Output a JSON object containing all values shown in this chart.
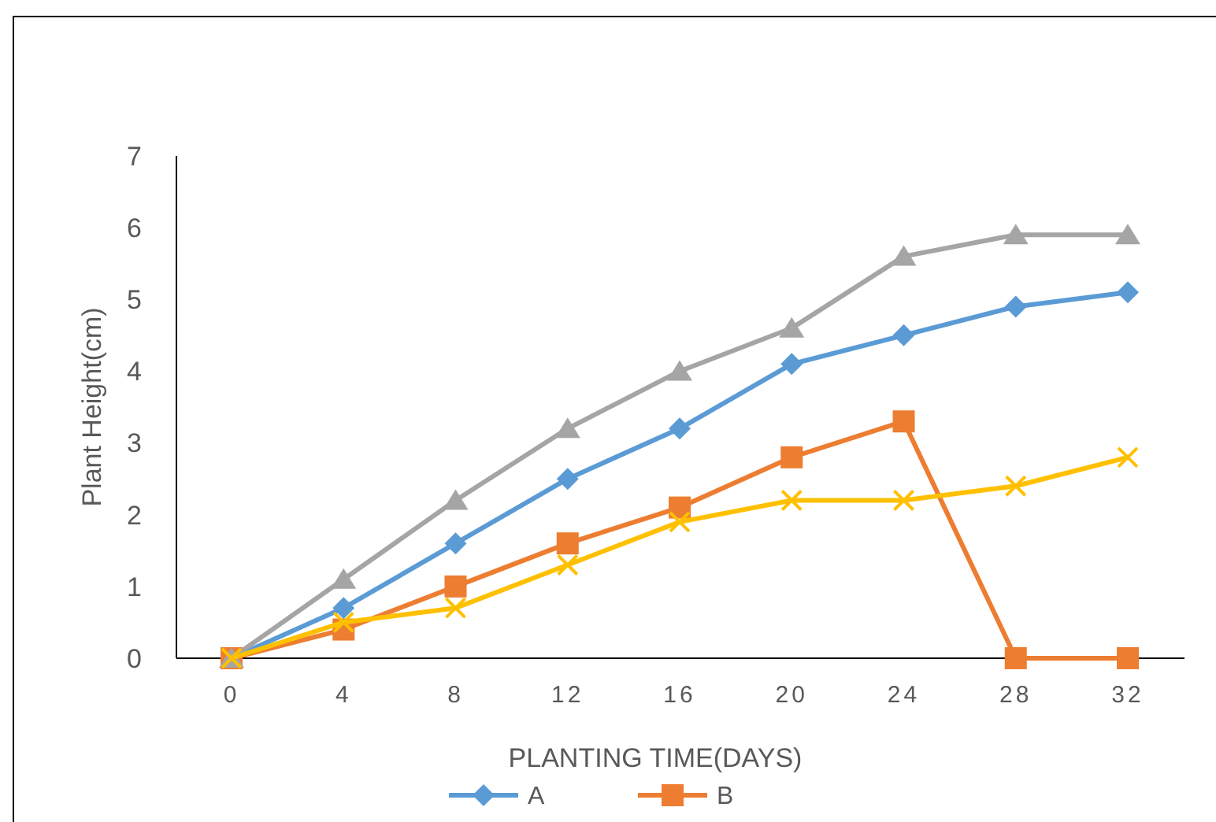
{
  "chart_data": {
    "type": "line",
    "xlabel": "PLANTING TIME(DAYS)",
    "ylabel": "Plant Height(cm)",
    "categories": [
      "0",
      "4",
      "8",
      "12",
      "16",
      "20",
      "24",
      "28",
      "32"
    ],
    "ylim": [
      0,
      7
    ],
    "yticks": [
      0,
      1,
      2,
      3,
      4,
      5,
      6,
      7
    ],
    "grid": false,
    "legend": "bottom",
    "series": [
      {
        "name": "A",
        "color": "#5b9bd5",
        "marker": "diamond",
        "values": [
          0,
          0.7,
          1.6,
          2.5,
          3.2,
          4.1,
          4.5,
          4.9,
          5.1
        ]
      },
      {
        "name": "B",
        "color": "#ed7d31",
        "marker": "square",
        "values": [
          0,
          0.4,
          1.0,
          1.6,
          2.1,
          2.8,
          3.3,
          0,
          0
        ]
      },
      {
        "color": "#a5a5a5",
        "marker": "triangle",
        "values": [
          0,
          1.1,
          2.2,
          3.2,
          4.0,
          4.6,
          5.6,
          5.9,
          5.9
        ]
      },
      {
        "color": "#ffc000",
        "marker": "cross",
        "values": [
          0,
          0.5,
          0.7,
          1.3,
          1.9,
          2.2,
          2.2,
          2.4,
          2.8
        ]
      }
    ]
  }
}
